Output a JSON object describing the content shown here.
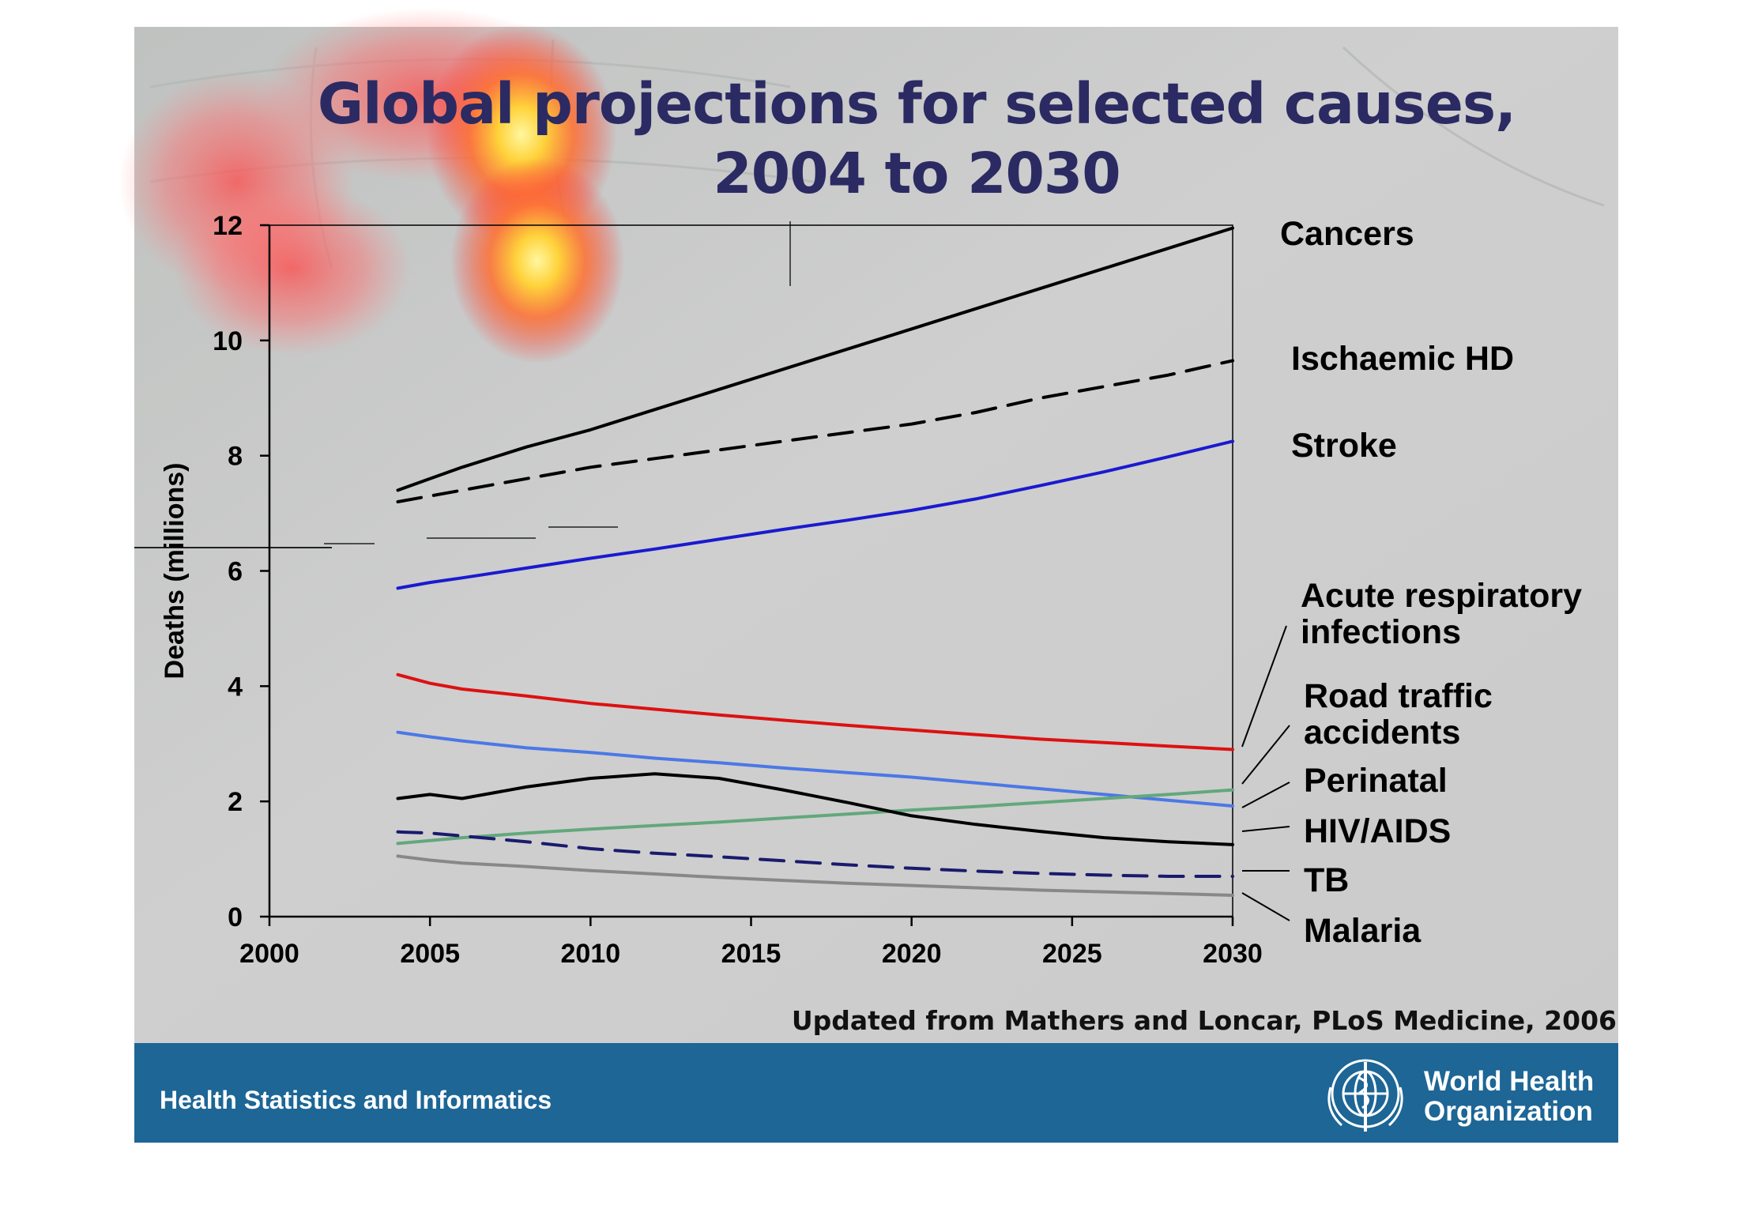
{
  "slide": {
    "title_line1": "Global projections for selected causes,",
    "title_line2": "2004 to 2030",
    "citation": "Updated from Mathers and Loncar, PLoS Medicine, 2006",
    "footer_left": "Health Statistics and Informatics",
    "org_line1": "World Health",
    "org_line2": "Organization",
    "logo_icon": "who-emblem-icon",
    "colors": {
      "background": "#c9c9c9",
      "footer_bar": "#1d6696",
      "title": "#2b2a63"
    }
  },
  "chart_data": {
    "type": "line",
    "title": "Global projections for selected causes, 2004 to 2030",
    "xlabel": "",
    "ylabel": "Deaths (millions)",
    "xlim": [
      2000,
      2030
    ],
    "ylim": [
      0,
      12
    ],
    "xticks": [
      2000,
      2005,
      2010,
      2015,
      2020,
      2025,
      2030
    ],
    "yticks": [
      0,
      2,
      4,
      6,
      8,
      10,
      12
    ],
    "grid": false,
    "legend": "right-side labels",
    "x": [
      2004,
      2005,
      2006,
      2008,
      2010,
      2012,
      2014,
      2016,
      2018,
      2020,
      2022,
      2024,
      2026,
      2028,
      2030
    ],
    "series": [
      {
        "name": "Cancers",
        "color": "#000000",
        "dash": "solid",
        "values": [
          7.4,
          7.6,
          7.8,
          8.15,
          8.45,
          8.8,
          9.15,
          9.5,
          9.85,
          10.2,
          10.55,
          10.9,
          11.25,
          11.6,
          11.95
        ]
      },
      {
        "name": "Ischaemic HD",
        "color": "#000000",
        "dash": "dashed",
        "values": [
          7.2,
          7.3,
          7.4,
          7.6,
          7.8,
          7.95,
          8.1,
          8.25,
          8.4,
          8.55,
          8.75,
          9.0,
          9.2,
          9.4,
          9.65
        ]
      },
      {
        "name": "Stroke",
        "color": "#1a1ad0",
        "dash": "solid",
        "values": [
          5.7,
          5.8,
          5.88,
          6.05,
          6.22,
          6.38,
          6.55,
          6.72,
          6.88,
          7.05,
          7.25,
          7.48,
          7.72,
          7.98,
          8.25
        ]
      },
      {
        "name": "Acute respiratory infections",
        "color": "#dd1111",
        "dash": "solid",
        "values": [
          4.2,
          4.05,
          3.95,
          3.83,
          3.7,
          3.6,
          3.5,
          3.41,
          3.32,
          3.24,
          3.16,
          3.08,
          3.02,
          2.96,
          2.9
        ]
      },
      {
        "name": "Road traffic accidents",
        "color": "#4b78e6",
        "dash": "solid",
        "values": [
          3.2,
          3.12,
          3.05,
          2.93,
          2.85,
          2.75,
          2.67,
          2.58,
          2.5,
          2.42,
          2.32,
          2.22,
          2.12,
          2.02,
          1.92
        ]
      },
      {
        "name": "Perinatal",
        "color": "#62a87c",
        "dash": "solid",
        "values": [
          1.27,
          1.32,
          1.37,
          1.45,
          1.52,
          1.58,
          1.64,
          1.71,
          1.78,
          1.85,
          1.91,
          1.98,
          2.05,
          2.12,
          2.2
        ]
      },
      {
        "name": "HIV/AIDS",
        "color": "#000000",
        "dash": "solid",
        "values": [
          2.05,
          2.12,
          2.05,
          2.25,
          2.4,
          2.48,
          2.4,
          2.2,
          1.98,
          1.75,
          1.6,
          1.48,
          1.37,
          1.3,
          1.25
        ]
      },
      {
        "name": "TB",
        "color": "#1a1a6e",
        "dash": "dashed",
        "values": [
          1.47,
          1.45,
          1.4,
          1.3,
          1.18,
          1.1,
          1.04,
          0.97,
          0.9,
          0.84,
          0.79,
          0.75,
          0.72,
          0.7,
          0.7
        ]
      },
      {
        "name": "Malaria",
        "color": "#888888",
        "dash": "solid",
        "values": [
          1.05,
          0.98,
          0.93,
          0.87,
          0.8,
          0.74,
          0.68,
          0.63,
          0.58,
          0.54,
          0.5,
          0.46,
          0.43,
          0.4,
          0.37
        ]
      }
    ],
    "series_labels": [
      {
        "lines": [
          "Cancers"
        ]
      },
      {
        "lines": [
          "Ischaemic HD"
        ]
      },
      {
        "lines": [
          "Stroke"
        ]
      },
      {
        "lines": [
          "Acute respiratory",
          "infections"
        ]
      },
      {
        "lines": [
          "Road traffic",
          "accidents"
        ]
      },
      {
        "lines": [
          "Perinatal"
        ]
      },
      {
        "lines": [
          "HIV/AIDS"
        ]
      },
      {
        "lines": [
          "TB"
        ]
      },
      {
        "lines": [
          "Malaria"
        ]
      }
    ]
  }
}
